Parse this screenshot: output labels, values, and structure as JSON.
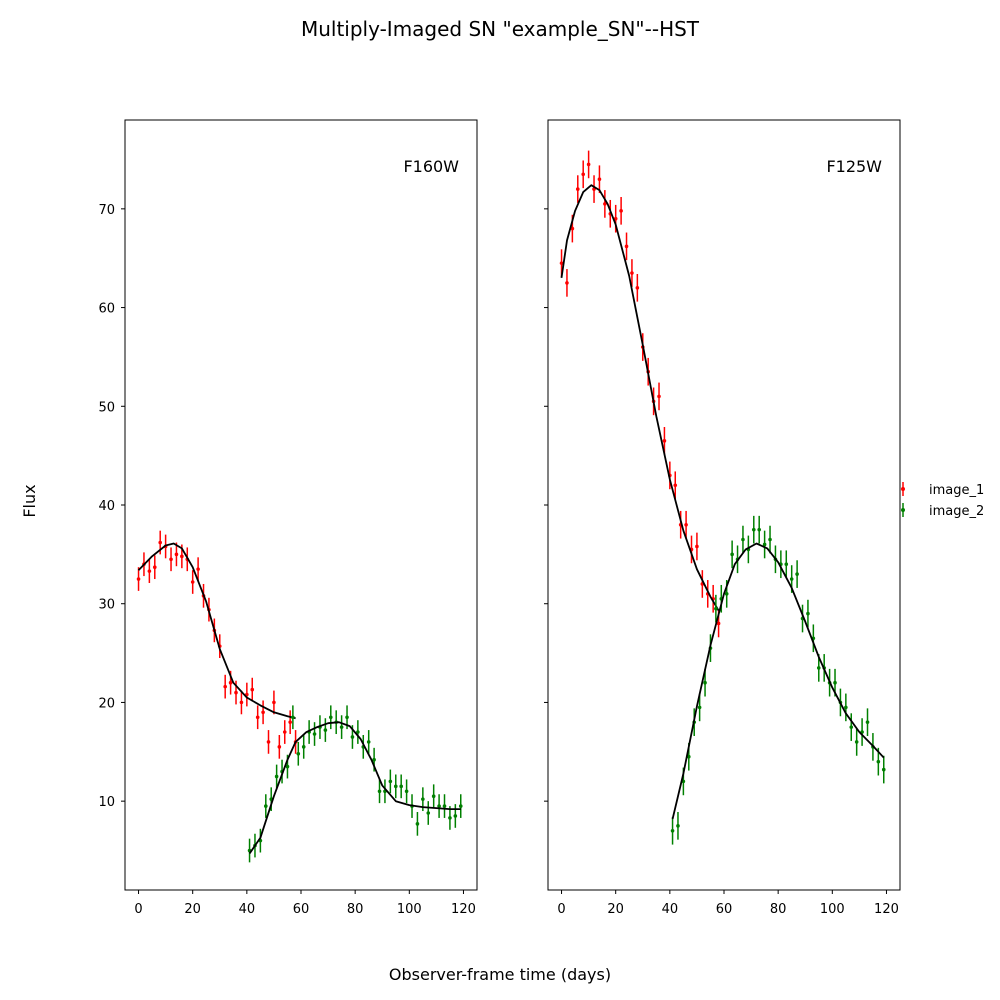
{
  "chart_data": {
    "type": "scatter",
    "title": "Multiply-Imaged SN \"example_SN\"--HST",
    "xlabel": "Observer-frame time (days)",
    "ylabel": "Flux",
    "xlim": [
      -5,
      125
    ],
    "ylim": [
      1,
      79
    ],
    "xticks": [
      0,
      20,
      40,
      60,
      80,
      100,
      120
    ],
    "yticks": [
      10,
      20,
      30,
      40,
      50,
      60,
      70
    ],
    "sharey": true,
    "grid": false,
    "legend": {
      "placement": "right",
      "entries": [
        "image_1",
        "image_2"
      ]
    },
    "colors": {
      "image_1": "#ff0000",
      "image_2": "#008000",
      "model": "#000000"
    },
    "panels": [
      {
        "band": "F160W",
        "series": [
          {
            "name": "image_1",
            "x": [
              0,
              2,
              4,
              6,
              8,
              10,
              12,
              14,
              16,
              18,
              20,
              22,
              24,
              26,
              28,
              30,
              32,
              34,
              36,
              38,
              40,
              42,
              44,
              46,
              48,
              50,
              52,
              54,
              56,
              58
            ],
            "y": [
              32.5,
              34.0,
              33.3,
              33.7,
              36.2,
              35.8,
              34.5,
              35.0,
              34.8,
              34.5,
              32.2,
              33.5,
              30.8,
              29.4,
              27.3,
              25.7,
              21.6,
              22.0,
              21.0,
              20.0,
              20.8,
              21.3,
              18.5,
              19.0,
              16.0,
              20.0,
              15.5,
              17.0,
              18.0,
              16.0
            ],
            "yerr": [
              1.2,
              1.2,
              1.2,
              1.2,
              1.2,
              1.2,
              1.2,
              1.2,
              1.2,
              1.2,
              1.2,
              1.2,
              1.2,
              1.2,
              1.2,
              1.2,
              1.2,
              1.2,
              1.2,
              1.2,
              1.2,
              1.2,
              1.2,
              1.2,
              1.2,
              1.2,
              1.2,
              1.2,
              1.2,
              1.2
            ],
            "model_x": [
              0,
              5,
              10,
              13,
              16,
              20,
              25,
              30,
              35,
              40,
              45,
              50,
              55,
              58
            ],
            "model_y": [
              33.4,
              34.8,
              35.9,
              36.1,
              35.6,
              33.7,
              30.2,
              25.4,
              22.0,
              20.5,
              19.7,
              19.0,
              18.6,
              18.4
            ]
          },
          {
            "name": "image_2",
            "x": [
              41,
              43,
              45,
              47,
              49,
              51,
              53,
              55,
              57,
              59,
              61,
              63,
              65,
              67,
              69,
              71,
              73,
              75,
              77,
              79,
              81,
              83,
              85,
              87,
              89,
              91,
              93,
              95,
              97,
              99,
              101,
              103,
              105,
              107,
              109,
              111,
              113,
              115,
              117,
              119
            ],
            "y": [
              5.0,
              5.5,
              6.0,
              9.5,
              10.2,
              12.5,
              13.0,
              13.5,
              18.5,
              14.8,
              15.5,
              17.0,
              16.8,
              17.5,
              17.2,
              18.5,
              18.0,
              17.5,
              18.5,
              16.5,
              17.0,
              15.5,
              16.0,
              14.2,
              11.0,
              11.0,
              12.0,
              11.5,
              11.5,
              11.0,
              9.5,
              7.7,
              10.2,
              8.8,
              10.5,
              9.5,
              9.5,
              8.3,
              8.5,
              9.5
            ],
            "yerr": [
              1.2,
              1.2,
              1.2,
              1.2,
              1.2,
              1.2,
              1.2,
              1.2,
              1.2,
              1.2,
              1.2,
              1.2,
              1.2,
              1.2,
              1.2,
              1.2,
              1.2,
              1.2,
              1.2,
              1.2,
              1.2,
              1.2,
              1.2,
              1.2,
              1.2,
              1.2,
              1.2,
              1.2,
              1.2,
              1.2,
              1.2,
              1.2,
              1.2,
              1.2,
              1.2,
              1.2,
              1.2,
              1.2,
              1.2,
              1.2
            ],
            "model_x": [
              41,
              45,
              50,
              55,
              58,
              62,
              66,
              70,
              74,
              78,
              82,
              86,
              90,
              95,
              100,
              105,
              110,
              115,
              119
            ],
            "model_y": [
              4.7,
              6.3,
              10.5,
              14.2,
              16.0,
              17.0,
              17.5,
              17.9,
              18.0,
              17.6,
              16.3,
              14.2,
              11.6,
              10.0,
              9.6,
              9.4,
              9.3,
              9.2,
              9.2
            ]
          }
        ]
      },
      {
        "band": "F125W",
        "series": [
          {
            "name": "image_1",
            "x": [
              0,
              2,
              4,
              6,
              8,
              10,
              12,
              14,
              16,
              18,
              20,
              22,
              24,
              26,
              28,
              30,
              32,
              34,
              36,
              38,
              40,
              42,
              44,
              46,
              48,
              50,
              52,
              54,
              56,
              58
            ],
            "y": [
              64.5,
              62.5,
              68.0,
              72.0,
              73.5,
              74.5,
              72.0,
              73.0,
              70.5,
              69.5,
              69.0,
              69.8,
              66.2,
              63.5,
              62.0,
              56.0,
              53.5,
              50.5,
              51.0,
              46.5,
              43.0,
              42.0,
              38.0,
              38.0,
              35.5,
              35.8,
              32.0,
              31.0,
              30.5,
              28.0
            ],
            "yerr": [
              1.4,
              1.4,
              1.4,
              1.4,
              1.4,
              1.4,
              1.4,
              1.4,
              1.4,
              1.4,
              1.4,
              1.4,
              1.4,
              1.4,
              1.4,
              1.4,
              1.4,
              1.4,
              1.4,
              1.4,
              1.4,
              1.4,
              1.4,
              1.4,
              1.4,
              1.4,
              1.4,
              1.4,
              1.4,
              1.4
            ],
            "model_x": [
              0,
              2,
              5,
              8,
              11,
              14,
              17,
              20,
              25,
              30,
              35,
              40,
              45,
              50,
              55,
              58
            ],
            "model_y": [
              63.0,
              66.8,
              69.8,
              71.7,
              72.4,
              71.9,
              70.5,
              68.4,
              63.2,
              56.2,
              49.0,
              42.6,
              37.4,
              33.5,
              30.7,
              29.3
            ]
          },
          {
            "name": "image_2",
            "x": [
              41,
              43,
              45,
              47,
              49,
              51,
              53,
              55,
              57,
              59,
              61,
              63,
              65,
              67,
              69,
              71,
              73,
              75,
              77,
              79,
              81,
              83,
              85,
              87,
              89,
              91,
              93,
              95,
              97,
              99,
              101,
              103,
              105,
              107,
              109,
              111,
              113,
              115,
              117,
              119
            ],
            "y": [
              7.0,
              7.5,
              12.0,
              14.5,
              18.0,
              19.5,
              22.0,
              25.5,
              29.5,
              30.5,
              31.0,
              35.0,
              34.5,
              36.5,
              35.5,
              37.5,
              37.5,
              36.0,
              36.5,
              34.5,
              34.0,
              34.0,
              32.5,
              33.0,
              28.5,
              29.0,
              26.5,
              23.5,
              23.5,
              22.0,
              22.0,
              20.0,
              19.5,
              17.5,
              16.0,
              17.0,
              18.0,
              15.5,
              14.0,
              13.2
            ],
            "yerr": [
              1.4,
              1.4,
              1.4,
              1.4,
              1.4,
              1.4,
              1.4,
              1.4,
              1.4,
              1.4,
              1.4,
              1.4,
              1.4,
              1.4,
              1.4,
              1.4,
              1.4,
              1.4,
              1.4,
              1.4,
              1.4,
              1.4,
              1.4,
              1.4,
              1.4,
              1.4,
              1.4,
              1.4,
              1.4,
              1.4,
              1.4,
              1.4,
              1.4,
              1.4,
              1.4,
              1.4,
              1.4,
              1.4,
              1.4,
              1.4
            ],
            "model_x": [
              41,
              45,
              50,
              55,
              60,
              64,
              68,
              72,
              76,
              80,
              85,
              90,
              95,
              100,
              105,
              110,
              115,
              119
            ],
            "model_y": [
              8.2,
              12.8,
              19.6,
              25.8,
              31.0,
              34.0,
              35.5,
              36.1,
              35.6,
              34.2,
              31.6,
              28.2,
              24.6,
              21.5,
              18.9,
              17.0,
              15.6,
              14.4
            ]
          }
        ]
      }
    ]
  }
}
